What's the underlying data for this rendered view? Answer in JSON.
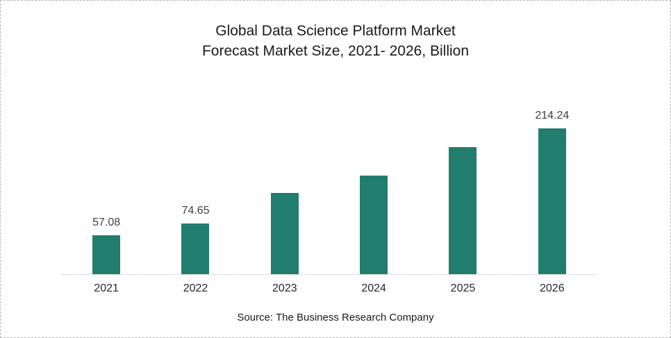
{
  "title": {
    "line1": "Global Data Science Platform Market",
    "line2": "Forecast Market Size, 2021- 2026, Billion"
  },
  "source": "Source: The Business Research Company",
  "colors": {
    "bar": "#217d6d",
    "axis": "#bdbdbd",
    "value_label": "#404040",
    "title_text": "#1a1a1a",
    "frame_border": "#b3b3b3"
  },
  "chart_data": {
    "type": "bar",
    "title": "Global Data Science Platform Market Forecast Market Size, 2021- 2026, Billion",
    "categories": [
      "2021",
      "2022",
      "2023",
      "2024",
      "2025",
      "2026"
    ],
    "values": [
      57.08,
      74.65,
      119,
      144.5,
      187,
      214.24
    ],
    "data_labels": [
      "57.08",
      "74.65",
      "",
      "",
      "",
      "214.24"
    ],
    "labeled_values_note": "only 2021, 2022 and 2026 bars carry visible data labels; middle values estimated from bar heights",
    "xlabel": "",
    "ylabel": "",
    "unit": "Billion",
    "ylim": [
      0,
      300
    ],
    "grid": false,
    "legend": false,
    "y_axis_visible": false,
    "x_axis_visible": true,
    "source_caption": "Source: The Business Research Company"
  }
}
